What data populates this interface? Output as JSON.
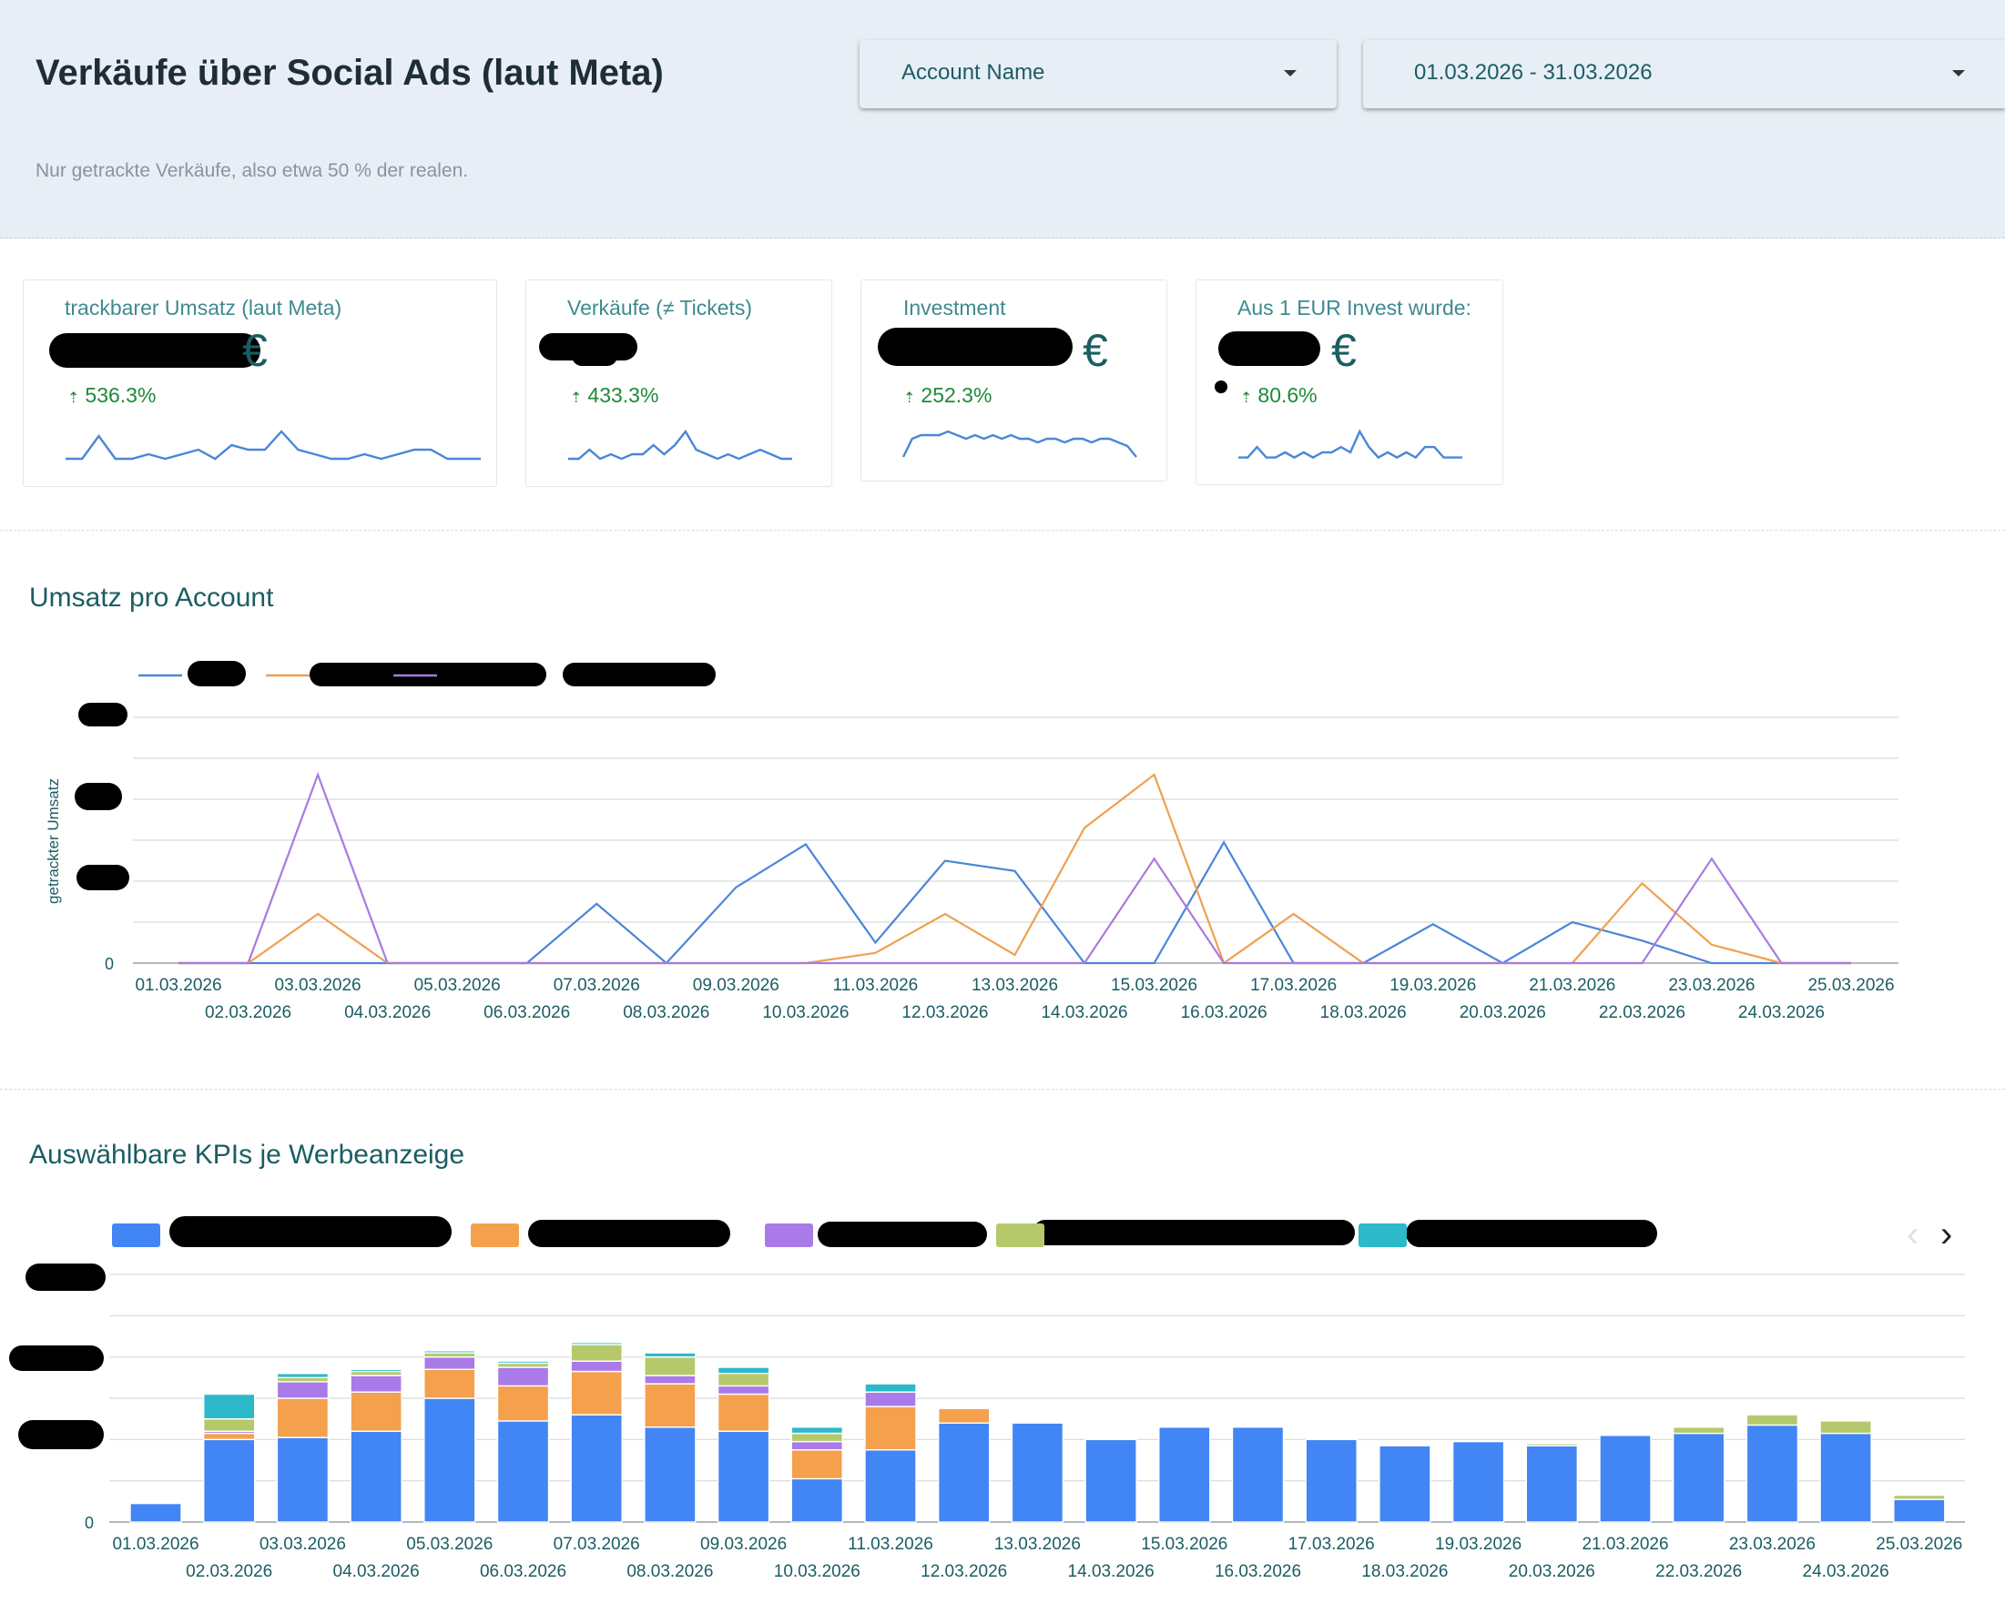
{
  "header": {
    "title": "Verkäufe über Social Ads (laut Meta)",
    "subtitle": "Nur getrackte Verkäufe, also etwa 50 % der realen.",
    "account_dropdown": "Account Name",
    "date_dropdown": "01.03.2026 - 31.03.2026"
  },
  "kpis": [
    {
      "title": "trackbarer Umsatz (laut Meta)",
      "unit": "€",
      "delta": "536.3%",
      "trend": [
        2,
        2,
        7,
        2,
        2,
        3,
        2,
        3,
        4,
        2,
        5,
        4,
        4,
        8,
        4,
        3,
        2,
        2,
        3,
        2,
        3,
        4,
        4,
        2,
        2,
        2
      ]
    },
    {
      "title": "Verkäufe (≠ Tickets)",
      "unit": "",
      "delta": "433.3%",
      "trend": [
        2,
        2,
        4,
        2,
        3,
        2,
        3,
        3,
        5,
        3,
        5,
        8,
        4,
        3,
        2,
        3,
        2,
        3,
        4,
        3,
        2,
        2
      ]
    },
    {
      "title": "Investment",
      "unit": "€",
      "delta": "252.3%",
      "trend": [
        3,
        8,
        9,
        9,
        9,
        10,
        9,
        8,
        9,
        8,
        9,
        8,
        9,
        8,
        8,
        7,
        8,
        8,
        7,
        8,
        8,
        7,
        8,
        8,
        7,
        6,
        3
      ]
    },
    {
      "title": "Aus 1 EUR Invest wurde:",
      "unit": "€",
      "delta": "80.6%",
      "trend": [
        2,
        2,
        4,
        2,
        2,
        3,
        2,
        3,
        2,
        3,
        3,
        4,
        3,
        7,
        4,
        2,
        3,
        2,
        3,
        2,
        4,
        4,
        2,
        2,
        2
      ]
    }
  ],
  "line_section": {
    "title": "Umsatz pro Account"
  },
  "bar_section": {
    "title": "Auswählbare KPIs je Werbeanzeige"
  },
  "chart_data": [
    {
      "type": "line",
      "title": "Umsatz pro Account",
      "ylabel": "getrackter Umsatz",
      "y_tick_zero": "0",
      "x": [
        "01.03.2026",
        "02.03.2026",
        "03.03.2026",
        "04.03.2026",
        "05.03.2026",
        "06.03.2026",
        "07.03.2026",
        "08.03.2026",
        "09.03.2026",
        "10.03.2026",
        "11.03.2026",
        "12.03.2026",
        "13.03.2026",
        "14.03.2026",
        "15.03.2026",
        "16.03.2026",
        "17.03.2026",
        "18.03.2026",
        "19.03.2026",
        "20.03.2026",
        "21.03.2026",
        "22.03.2026",
        "23.03.2026",
        "24.03.2026",
        "25.03.2026"
      ],
      "ylim": [
        0,
        6
      ],
      "grid": true,
      "legend": "top-left",
      "series": [
        {
          "color": "#4a86d8",
          "values": [
            0,
            0,
            0,
            0,
            0,
            0,
            1.45,
            0,
            1.85,
            2.9,
            0.5,
            2.5,
            2.25,
            0,
            0,
            2.95,
            0,
            0,
            0.95,
            0,
            1,
            0.55,
            0,
            0,
            0
          ]
        },
        {
          "color": "#f0a050",
          "values": [
            0,
            0,
            1.2,
            0,
            0,
            0,
            0,
            0,
            0,
            0,
            0.25,
            1.2,
            0.2,
            3.3,
            4.6,
            0,
            1.2,
            0,
            0,
            0,
            0,
            1.95,
            0.45,
            0,
            0
          ]
        },
        {
          "color": "#a97ae0",
          "values": [
            0,
            0,
            4.6,
            0,
            0,
            0,
            0,
            0,
            0,
            0,
            0,
            0,
            0,
            0,
            2.55,
            0,
            0,
            0,
            0,
            0,
            0,
            0,
            2.55,
            0,
            0
          ]
        }
      ]
    },
    {
      "type": "bar",
      "title": "Auswählbare KPIs je Werbeanzeige",
      "y_tick_zero": "0",
      "categories": [
        "01.03.2026",
        "02.03.2026",
        "03.03.2026",
        "04.03.2026",
        "05.03.2026",
        "06.03.2026",
        "07.03.2026",
        "08.03.2026",
        "09.03.2026",
        "10.03.2026",
        "11.03.2026",
        "12.03.2026",
        "13.03.2026",
        "14.03.2026",
        "15.03.2026",
        "16.03.2026",
        "17.03.2026",
        "18.03.2026",
        "19.03.2026",
        "20.03.2026",
        "21.03.2026",
        "22.03.2026",
        "23.03.2026",
        "24.03.2026",
        "25.03.2026"
      ],
      "ylim": [
        0,
        6
      ],
      "grid": true,
      "legend": "top-left",
      "series": [
        {
          "color": "#4285f4",
          "values": [
            0.45,
            2.0,
            2.05,
            2.2,
            3.0,
            2.45,
            2.6,
            2.3,
            2.2,
            1.05,
            1.75,
            2.4,
            2.4,
            2.0,
            2.3,
            2.3,
            2.0,
            1.85,
            1.95,
            1.85,
            2.1,
            2.15,
            2.35,
            2.15,
            0.55
          ]
        },
        {
          "color": "#f4a04d",
          "values": [
            0,
            0.15,
            0.95,
            0.95,
            0.7,
            0.85,
            1.05,
            1.05,
            0.9,
            0.7,
            1.05,
            0.35,
            0,
            0,
            0,
            0,
            0,
            0,
            0,
            0,
            0,
            0,
            0,
            0,
            0
          ]
        },
        {
          "color": "#a97ae8",
          "values": [
            0,
            0.05,
            0.4,
            0.4,
            0.3,
            0.45,
            0.25,
            0.2,
            0.2,
            0.2,
            0.35,
            0,
            0,
            0,
            0,
            0,
            0,
            0,
            0,
            0,
            0,
            0,
            0,
            0,
            0
          ]
        },
        {
          "color": "#b5c96a",
          "values": [
            0,
            0.3,
            0.1,
            0.1,
            0.1,
            0.1,
            0.4,
            0.45,
            0.3,
            0.2,
            0,
            0,
            0,
            0,
            0,
            0,
            0,
            0,
            0,
            0.05,
            0,
            0.15,
            0.25,
            0.3,
            0.1
          ]
        },
        {
          "color": "#2cb9c9",
          "values": [
            0,
            0.6,
            0.1,
            0.05,
            0.05,
            0.05,
            0.05,
            0.1,
            0.15,
            0.15,
            0.2,
            0,
            0,
            0,
            0,
            0,
            0,
            0,
            0,
            0,
            0,
            0,
            0,
            0,
            0
          ]
        }
      ]
    }
  ]
}
